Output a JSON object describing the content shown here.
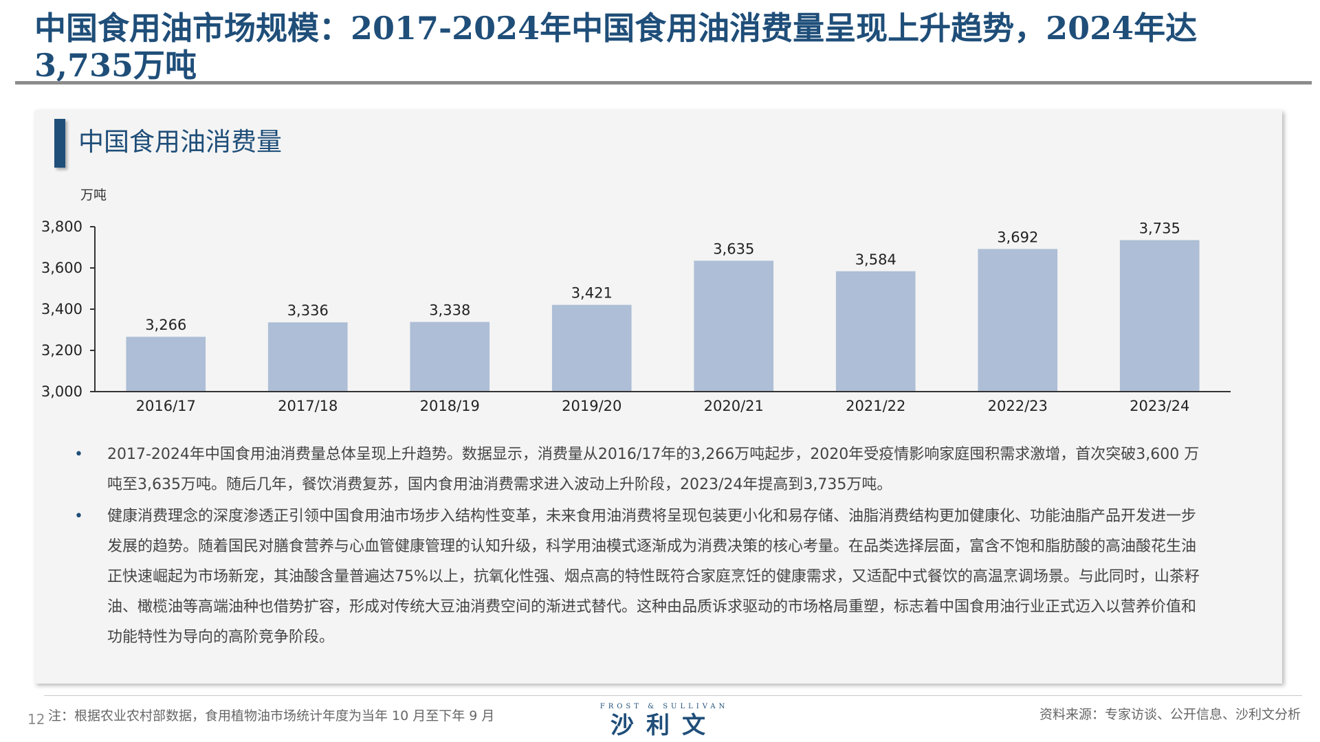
{
  "page": {
    "title": "中国食用油市场规模：2017-2024年中国食用油消费量呈现上升趋势，2024年达3,735万吨",
    "page_number": "12",
    "footnote": "注：根据农业农村部数据，食用植物油市场统计年度为当年 10 月至下年 9 月",
    "source": "资料来源：专家访谈、公开信息、沙利文分析"
  },
  "panel": {
    "title": "中国食用油消费量"
  },
  "logo": {
    "top_text": "FROST & SULLIVAN",
    "main_text": "沙利文"
  },
  "colors": {
    "title": "#1f4e79",
    "bar": "#adbed6",
    "axis": "#333333",
    "text": "#444444"
  },
  "chart_data": {
    "type": "bar",
    "unit_label": "万吨",
    "categories": [
      "2016/17",
      "2017/18",
      "2018/19",
      "2019/20",
      "2020/21",
      "2021/22",
      "2022/23",
      "2023/24"
    ],
    "values": [
      3266,
      3336,
      3338,
      3421,
      3635,
      3584,
      3692,
      3735
    ],
    "value_labels": [
      "3,266",
      "3,336",
      "3,338",
      "3,421",
      "3,635",
      "3,584",
      "3,692",
      "3,735"
    ],
    "y_ticks": [
      "3,000",
      "3,200",
      "3,400",
      "3,600",
      "3,800"
    ],
    "ylim": [
      3000,
      3800
    ],
    "grid": false,
    "legend": "none"
  },
  "bullets": [
    "2017-2024年中国食用油消费量总体呈现上升趋势。数据显示，消费量从2016/17年的3,266万吨起步，2020年受疫情影响家庭囤积需求激增，首次突破3,600 万吨至3,635万吨。随后几年，餐饮消费复苏，国内食用油消费需求进入波动上升阶段，2023/24年提高到3,735万吨。",
    "健康消费理念的深度渗透正引领中国食用油市场步入结构性变革，未来食用油消费将呈现包装更小化和易存储、油脂消费结构更加健康化、功能油脂产品开发进一步发展的趋势。随着国民对膳食营养与心血管健康管理的认知升级，科学用油模式逐渐成为消费决策的核心考量。在品类选择层面，富含不饱和脂肪酸的高油酸花生油正快速崛起为市场新宠，其油酸含量普遍达75%以上，抗氧化性强、烟点高的特性既符合家庭烹饪的健康需求，又适配中式餐饮的高温烹调场景。与此同时，山茶籽油、橄榄油等高端油种也借势扩容，形成对传统大豆油消费空间的渐进式替代。这种由品质诉求驱动的市场格局重塑，标志着中国食用油行业正式迈入以营养价值和功能特性为导向的高阶竞争阶段。"
  ]
}
